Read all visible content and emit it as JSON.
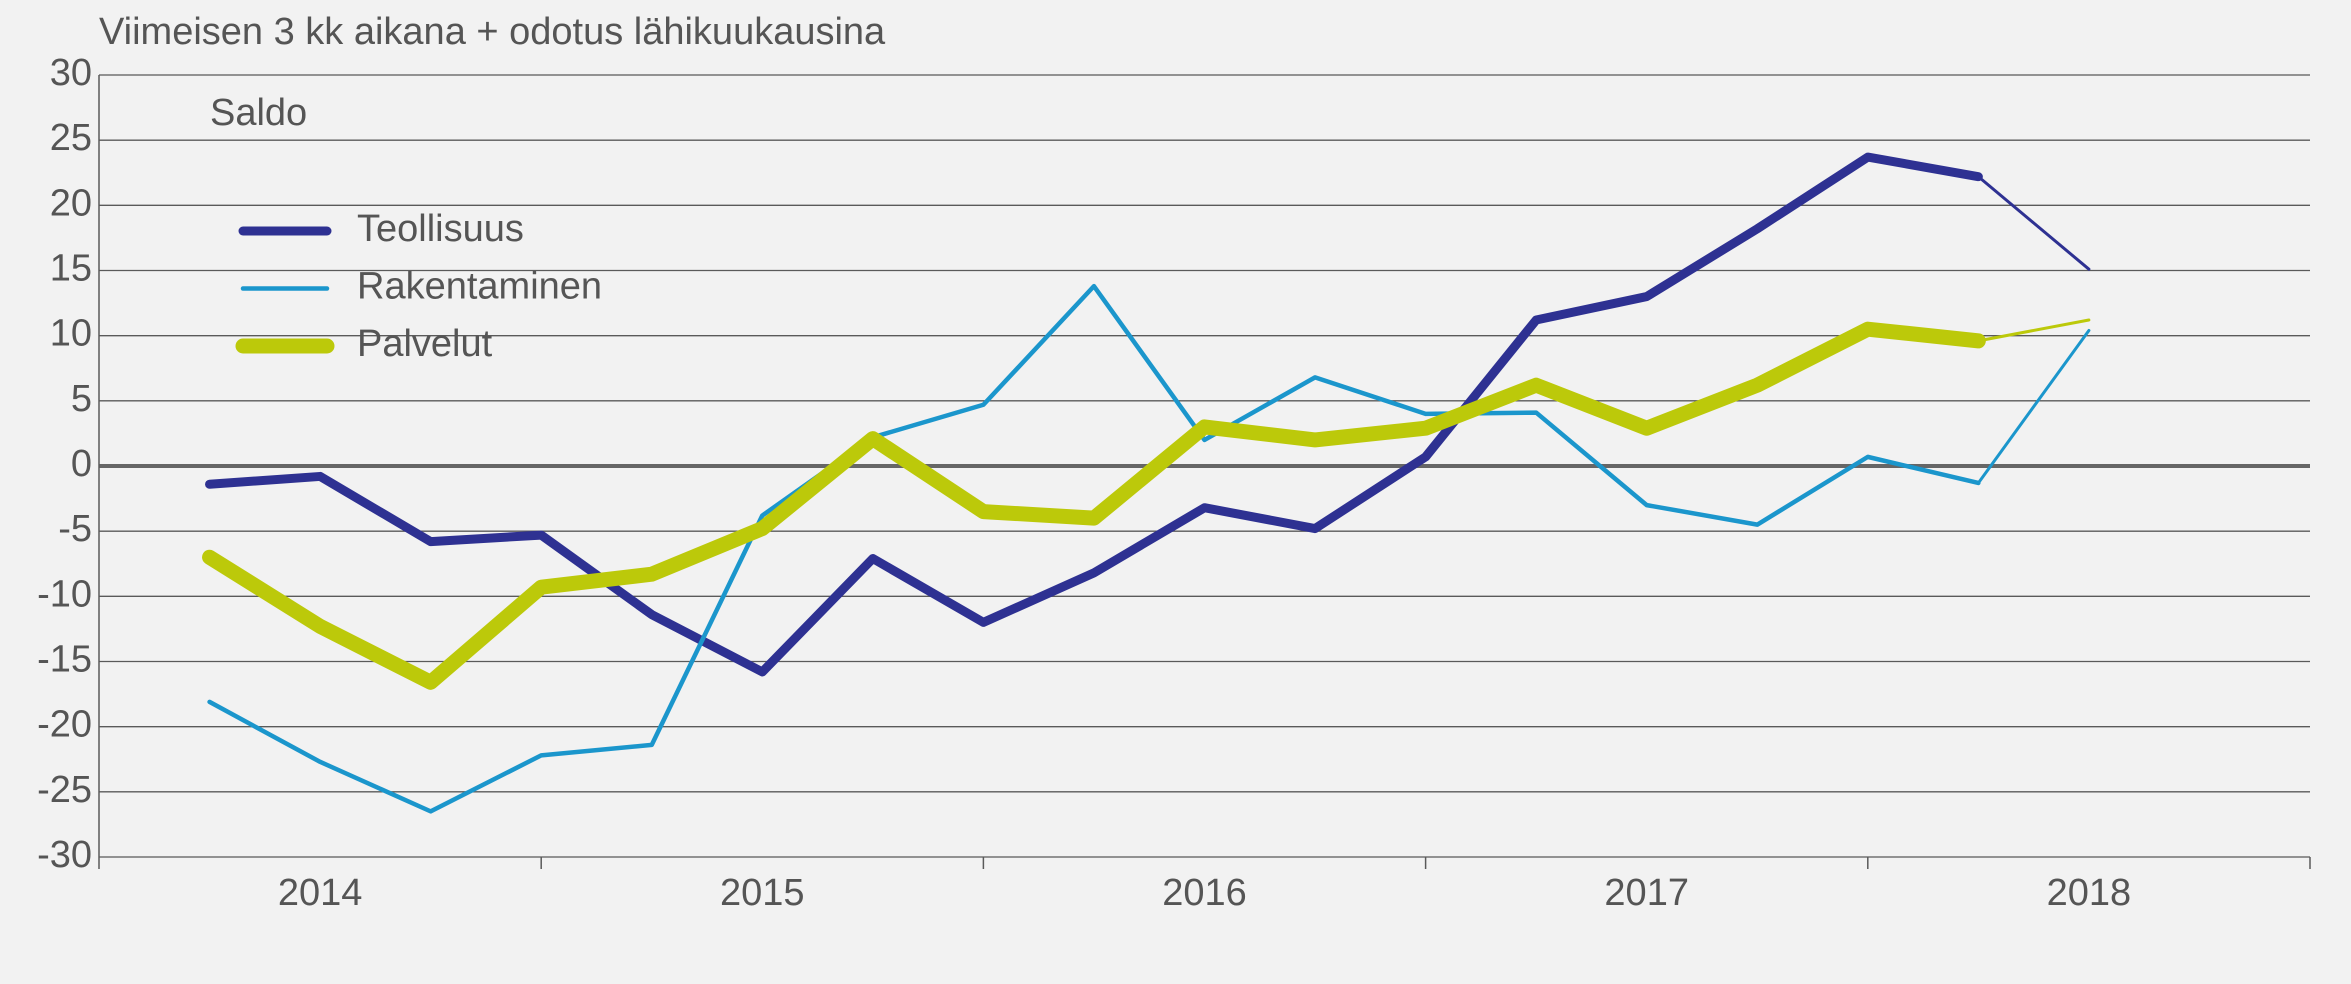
{
  "chart_data": {
    "type": "line",
    "title": "Viimeisen 3 kk aikana + odotus lähikuukausina",
    "y_label": "Saldo",
    "x": [
      2013.75,
      2014,
      2014.25,
      2014.5,
      2014.75,
      2015,
      2015.25,
      2015.5,
      2015.75,
      2016,
      2016.25,
      2016.5,
      2016.75,
      2017,
      2017.25,
      2017.5,
      2017.75,
      2018
    ],
    "series": [
      {
        "name": "Teollisuus",
        "color": "#2e3192",
        "values": [
          -1.4,
          -0.8,
          -5.8,
          -5.3,
          -11.4,
          -15.8,
          -7.1,
          -12.0,
          -8.2,
          -3.2,
          -4.8,
          0.7,
          11.2,
          13.0,
          18.2,
          23.7,
          22.2,
          15.1
        ]
      },
      {
        "name": "Rakentaminen",
        "color": "#1b96cc",
        "values": [
          -18.1,
          -22.7,
          -26.5,
          -22.2,
          -21.4,
          -3.8,
          2.2,
          4.7,
          13.8,
          2.0,
          6.8,
          4.0,
          4.1,
          -3.0,
          -4.5,
          0.7,
          -1.3,
          10.4
        ]
      },
      {
        "name": "Palvelut",
        "color": "#bcc90a",
        "values": [
          -7.0,
          -12.3,
          -16.6,
          -9.3,
          -8.3,
          -4.8,
          2.1,
          -3.5,
          -4.0,
          3.0,
          2.0,
          2.9,
          6.2,
          2.9,
          6.2,
          10.5,
          9.6,
          11.2
        ]
      }
    ],
    "xlim": [
      2013.5,
      2018.5
    ],
    "xticks": [
      2014,
      2015,
      2016,
      2017,
      2018
    ],
    "xminorticks": [
      2013.5,
      2014.5,
      2015.5,
      2016.5,
      2017.5,
      2018.5
    ],
    "ylim": [
      -30,
      30
    ],
    "yticks": [
      -30,
      -25,
      -20,
      -15,
      -10,
      -5,
      0,
      5,
      10,
      15,
      20,
      25,
      30
    ],
    "grid": true,
    "legend": "upper left"
  }
}
